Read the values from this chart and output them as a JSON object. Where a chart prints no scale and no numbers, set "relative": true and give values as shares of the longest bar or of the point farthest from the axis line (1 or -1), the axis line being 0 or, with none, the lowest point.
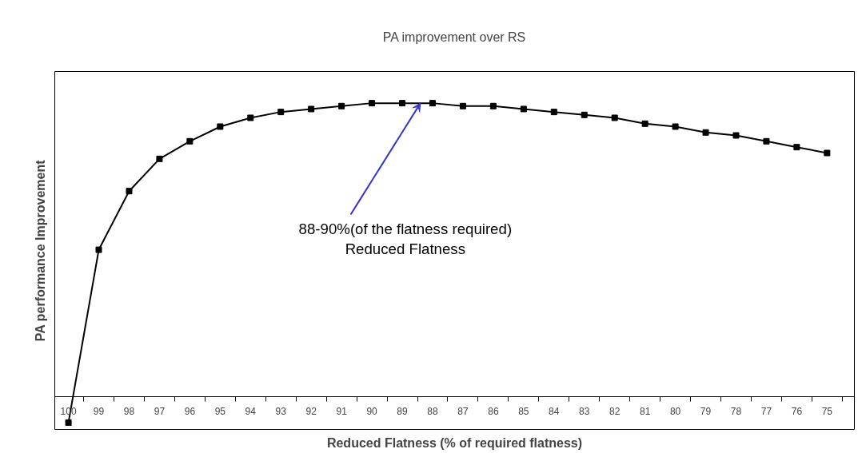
{
  "chart_data": {
    "type": "line",
    "title": "PA improvement over RS",
    "xlabel": "Reduced Flatness (% of required flatness)",
    "ylabel": "PA performance Improvement",
    "relative": true,
    "marker": "square",
    "line_style": "solid",
    "grid": false,
    "categories": [
      "100",
      "99",
      "98",
      "97",
      "96",
      "95",
      "94",
      "93",
      "92",
      "91",
      "90",
      "89",
      "88",
      "87",
      "86",
      "85",
      "84",
      "83",
      "82",
      "81",
      "80",
      "79",
      "78",
      "77",
      "76",
      "75"
    ],
    "series": [
      {
        "color": "#000000",
        "values": [
          -0.09,
          0.5,
          0.7,
          0.81,
          0.87,
          0.92,
          0.95,
          0.97,
          0.98,
          0.99,
          1.0,
          1.0,
          1.0,
          0.99,
          0.99,
          0.98,
          0.97,
          0.96,
          0.95,
          0.93,
          0.92,
          0.9,
          0.89,
          0.87,
          0.85,
          0.83
        ]
      }
    ],
    "annotations": [
      "88-90%(of the flatness required)\nReduced Flatness"
    ]
  }
}
